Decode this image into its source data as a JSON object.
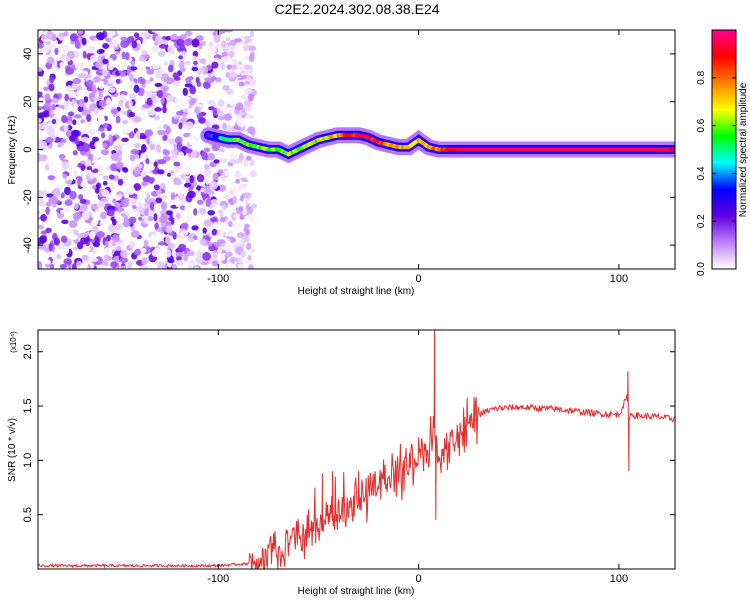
{
  "title": "C2E2.2024.302.08.38.E24",
  "chart_data": [
    {
      "type": "heatmap",
      "xlabel": "Height of straight line (km)",
      "ylabel": "Frequency (Hz)",
      "xlim": [
        -190,
        128
      ],
      "ylim": [
        -50,
        50
      ],
      "xticks": [
        -100,
        0,
        100
      ],
      "yticks": [
        -40,
        -20,
        0,
        20,
        40
      ],
      "grid": false,
      "colorbar": {
        "label": "Normalized spectral amplitude",
        "range": [
          0,
          1
        ],
        "ticks": [
          "0.0",
          "0.2",
          "0.4",
          "0.6",
          "0.8"
        ],
        "colors": [
          "#ffffff",
          "#c080ff",
          "#6000e0",
          "#0000ff",
          "#00ffff",
          "#00ff00",
          "#ffff00",
          "#ff8000",
          "#ff0000",
          "#ff0090"
        ]
      },
      "noise_region": {
        "x": [
          -190,
          -82
        ],
        "y": [
          -50,
          50
        ],
        "amplitude": [
          0.0,
          0.25
        ]
      },
      "ridge": {
        "x": [
          -105,
          -100,
          -95,
          -90,
          -85,
          -80,
          -75,
          -70,
          -65,
          -60,
          -55,
          -50,
          -45,
          -40,
          -35,
          -30,
          -25,
          -20,
          -15,
          -10,
          -5,
          0,
          5,
          10,
          15,
          20,
          40,
          60,
          80,
          100,
          120,
          128
        ],
        "frequency": [
          6,
          5,
          4,
          4,
          2,
          1,
          0,
          0,
          -2,
          0,
          2,
          4,
          5,
          6,
          6,
          6,
          5,
          3,
          2,
          1,
          1,
          4,
          1,
          0,
          0,
          0,
          0,
          0,
          0,
          0,
          0,
          0
        ],
        "amplitude": [
          0.2,
          0.4,
          0.5,
          0.6,
          0.6,
          0.6,
          0.6,
          0.6,
          0.6,
          0.6,
          0.6,
          0.65,
          0.7,
          0.75,
          0.85,
          0.95,
          0.9,
          0.85,
          0.75,
          0.7,
          0.7,
          0.7,
          0.75,
          0.8,
          0.9,
          0.95,
          0.95,
          0.95,
          0.95,
          0.95,
          0.95,
          0.95
        ]
      }
    },
    {
      "type": "line",
      "xlabel": "Height of straight line (km)",
      "ylabel": "SNR (10 * v/v)",
      "y_multiplier": "(x10⁴)",
      "xlim": [
        -190,
        128
      ],
      "ylim": [
        0,
        2.2
      ],
      "xticks": [
        -100,
        0,
        100
      ],
      "yticks": [
        0.5,
        1.0,
        1.5,
        2.0
      ],
      "yticklabels": [
        "0.5",
        "1.0",
        "1.5",
        "2.0"
      ],
      "color": "#e03030",
      "grid": false,
      "series": [
        {
          "x": [
            -190,
            -150,
            -100,
            -85,
            -80,
            -75,
            -70,
            -65,
            -60,
            -55,
            -50,
            -45,
            -40,
            -35,
            -30,
            -25,
            -20,
            -15,
            -10,
            -5,
            0,
            5,
            8,
            10,
            15,
            20,
            25,
            30,
            35,
            40,
            50,
            60,
            70,
            80,
            90,
            100,
            104,
            105,
            106,
            110,
            120,
            128
          ],
          "y": [
            0.03,
            0.03,
            0.03,
            0.05,
            0.1,
            0.15,
            0.2,
            0.25,
            0.32,
            0.38,
            0.42,
            0.48,
            0.52,
            0.58,
            0.65,
            0.72,
            0.78,
            0.85,
            0.9,
            0.98,
            1.05,
            1.1,
            1.3,
            0.95,
            1.15,
            1.25,
            1.35,
            1.42,
            1.46,
            1.48,
            1.49,
            1.48,
            1.47,
            1.45,
            1.43,
            1.42,
            1.58,
            1.4,
            1.42,
            1.41,
            1.4,
            1.38
          ]
        }
      ],
      "spikes": [
        {
          "x": 8,
          "y": 2.2
        },
        {
          "x": 8.6,
          "y": 0.45
        },
        {
          "x": 104.5,
          "y": 1.82
        },
        {
          "x": 105,
          "y": 0.9
        },
        {
          "x": -48,
          "y": 0.88
        },
        {
          "x": -43,
          "y": 0.9
        },
        {
          "x": -30,
          "y": 0.9
        }
      ]
    }
  ]
}
